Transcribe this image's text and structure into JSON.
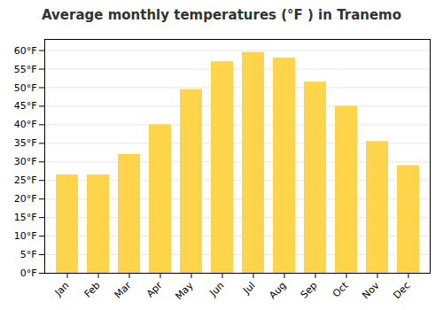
{
  "chart_data": {
    "type": "bar",
    "title": "Average monthly temperatures (°F ) in Tranemo",
    "categories": [
      "Jan",
      "Feb",
      "Mar",
      "Apr",
      "May",
      "Jun",
      "Jul",
      "Aug",
      "Sep",
      "Oct",
      "Nov",
      "Dec"
    ],
    "values": [
      26.5,
      26.5,
      32,
      40,
      49.5,
      57,
      59.5,
      58,
      51.5,
      45,
      35.5,
      29
    ],
    "color": "#FDD44A",
    "ylim": [
      0,
      63
    ],
    "yticks": [
      {
        "value": 0,
        "label": "0°F"
      },
      {
        "value": 5,
        "label": "5°F"
      },
      {
        "value": 10,
        "label": "10°F"
      },
      {
        "value": 15,
        "label": "15°F"
      },
      {
        "value": 20,
        "label": "20°F"
      },
      {
        "value": 25,
        "label": "25°F"
      },
      {
        "value": 30,
        "label": "30°F"
      },
      {
        "value": 35,
        "label": "35°F"
      },
      {
        "value": 40,
        "label": "40°F"
      },
      {
        "value": 45,
        "label": "45°F"
      },
      {
        "value": 50,
        "label": "50°F"
      },
      {
        "value": 55,
        "label": "55°F"
      },
      {
        "value": 60,
        "label": "60°F"
      }
    ],
    "grid": true
  }
}
